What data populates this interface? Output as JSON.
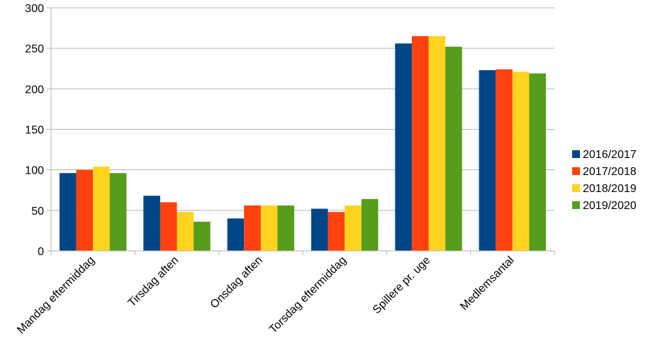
{
  "chart_data": {
    "type": "bar",
    "title": "",
    "xlabel": "",
    "ylabel": "",
    "ylim": [
      0,
      300
    ],
    "yticks": [
      0,
      50,
      100,
      150,
      200,
      250,
      300
    ],
    "grid": true,
    "legend_position": "right",
    "categories": [
      "Mandag eftermiddag",
      "Tirsdag aften",
      "Onsdag aften",
      "Torsdag eftermiddag",
      "Spillere pr.  uge",
      "Medlemsantal"
    ],
    "series": [
      {
        "name": "2016/2017",
        "color": "#004586",
        "values": [
          96,
          68,
          40,
          52,
          256,
          223
        ]
      },
      {
        "name": "2017/2018",
        "color": "#ff420e",
        "values": [
          100,
          60,
          56,
          48,
          265,
          224
        ]
      },
      {
        "name": "2018/2019",
        "color": "#ffd320",
        "values": [
          104,
          48,
          56,
          56,
          265,
          221
        ]
      },
      {
        "name": "2019/2020",
        "color": "#579d1c",
        "values": [
          96,
          36,
          56,
          64,
          252,
          219
        ]
      }
    ]
  }
}
